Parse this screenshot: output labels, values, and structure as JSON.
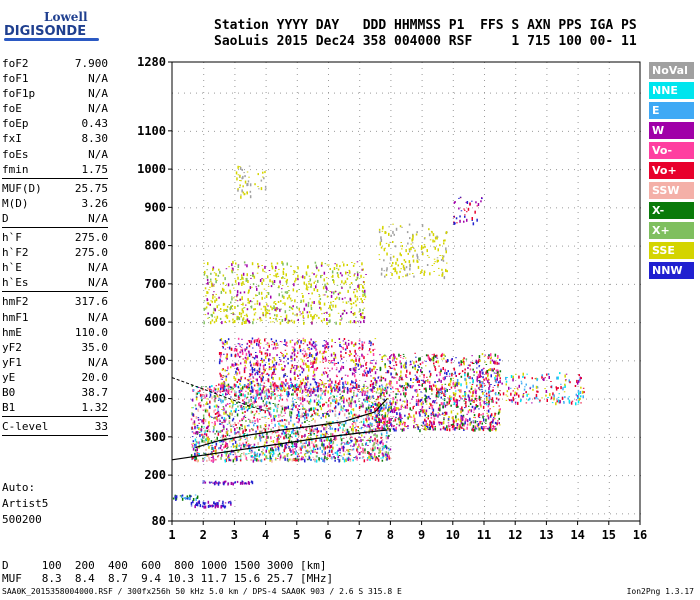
{
  "logo": {
    "line1": "Lowell",
    "line2": "DIGISONDE"
  },
  "header": {
    "row1": "Station YYYY DAY   DDD HHMMSS P1  FFS S AXN PPS IGA PS",
    "row2": "SaoLuis 2015 Dec24 358 004000 RSF     1 715 100 00- 11"
  },
  "params_group1": [
    {
      "k": "foF2",
      "v": "7.900"
    },
    {
      "k": "foF1",
      "v": "N/A"
    },
    {
      "k": "foF1p",
      "v": "N/A"
    },
    {
      "k": "foE",
      "v": "N/A"
    },
    {
      "k": "foEp",
      "v": "0.43"
    },
    {
      "k": "fxI",
      "v": "8.30"
    },
    {
      "k": "foEs",
      "v": "N/A"
    },
    {
      "k": "fmin",
      "v": "1.75"
    }
  ],
  "params_group2": [
    {
      "k": "MUF(D)",
      "v": "25.75"
    },
    {
      "k": "M(D)",
      "v": "3.26"
    },
    {
      "k": "D",
      "v": "N/A"
    }
  ],
  "params_group3": [
    {
      "k": "h`F",
      "v": "275.0"
    },
    {
      "k": "h`F2",
      "v": "275.0"
    },
    {
      "k": "h`E",
      "v": "N/A"
    },
    {
      "k": "h`Es",
      "v": "N/A"
    }
  ],
  "params_group4": [
    {
      "k": "hmF2",
      "v": "317.6"
    },
    {
      "k": "hmF1",
      "v": "N/A"
    },
    {
      "k": "hmE",
      "v": "110.0"
    },
    {
      "k": "yF2",
      "v": "35.0"
    },
    {
      "k": "yF1",
      "v": "N/A"
    },
    {
      "k": "yE",
      "v": "20.0"
    },
    {
      "k": "B0",
      "v": "38.7"
    },
    {
      "k": "B1",
      "v": "1.32"
    }
  ],
  "params_group5": [
    {
      "k": "C-level",
      "v": "33"
    }
  ],
  "auto": [
    "Auto:",
    "Artist5",
    "500200"
  ],
  "legend": [
    {
      "label": "NoVal",
      "color": "#a0a0a0"
    },
    {
      "label": "NNE",
      "color": "#00e5ee"
    },
    {
      "label": "E",
      "color": "#3fa9f5"
    },
    {
      "label": "W",
      "color": "#a000a8"
    },
    {
      "label": "Vo-",
      "color": "#ff3fa0"
    },
    {
      "label": "Vo+",
      "color": "#e8002c"
    },
    {
      "label": "SSW",
      "color": "#f4b0a8"
    },
    {
      "label": "X-",
      "color": "#0a7a0a"
    },
    {
      "label": "X+",
      "color": "#7fbf5f"
    },
    {
      "label": "SSE",
      "color": "#d4d400"
    },
    {
      "label": "NNW",
      "color": "#2020d0"
    }
  ],
  "bottom": {
    "row1": "D     100  200  400  600  800 1000 1500 3000 [km]",
    "row2": "MUF   8.3  8.4  8.7  9.4 10.3 11.7 15.6 25.7 [MHz]"
  },
  "footer": {
    "left": "SAA0K_2015358004000.RSF / 300fx256h 50 kHz 5.0 km / DPS-4 SAA0K 903 / 2.6 S 315.8 E",
    "right": "Ion2Png 1.3.17"
  },
  "chart_data": {
    "type": "scatter",
    "xlim": [
      1,
      16
    ],
    "ylim": [
      80,
      1280
    ],
    "x_ticks": [
      1,
      2,
      3,
      4,
      5,
      6,
      7,
      8,
      9,
      10,
      11,
      12,
      13,
      14,
      15,
      16
    ],
    "y_ticks": [
      80,
      200,
      300,
      400,
      500,
      600,
      700,
      800,
      900,
      1000,
      1100,
      1280
    ],
    "grid": true,
    "profile_curve": [
      {
        "x": 1.0,
        "y": 240
      },
      {
        "x": 2.0,
        "y": 252
      },
      {
        "x": 3.0,
        "y": 264
      },
      {
        "x": 4.0,
        "y": 276
      },
      {
        "x": 5.0,
        "y": 288
      },
      {
        "x": 6.0,
        "y": 300
      },
      {
        "x": 7.0,
        "y": 310
      },
      {
        "x": 7.9,
        "y": 318
      }
    ],
    "trace_curve": [
      {
        "x": 1.75,
        "y": 272
      },
      {
        "x": 2.5,
        "y": 290
      },
      {
        "x": 3.5,
        "y": 305
      },
      {
        "x": 4.5,
        "y": 318
      },
      {
        "x": 5.5,
        "y": 328
      },
      {
        "x": 6.5,
        "y": 340
      },
      {
        "x": 7.5,
        "y": 365
      },
      {
        "x": 7.9,
        "y": 400
      }
    ],
    "trace_curve_upper": [
      {
        "x": 1.0,
        "y": 455
      },
      {
        "x": 1.5,
        "y": 440
      },
      {
        "x": 2.0,
        "y": 425
      },
      {
        "x": 2.5,
        "y": 410
      },
      {
        "x": 3.0,
        "y": 395
      },
      {
        "x": 3.5,
        "y": 380
      },
      {
        "x": 4.0,
        "y": 368
      }
    ],
    "echo_clusters": [
      {
        "x0": 1.6,
        "x1": 8.0,
        "y0": 240,
        "y1": 440,
        "count": 2200,
        "colors": [
          "#e8002c",
          "#ff3fa0",
          "#a000a8",
          "#2020d0",
          "#d4d400",
          "#0a7a0a",
          "#7fbf5f",
          "#3fa9f5",
          "#00e5ee",
          "#f4b0a8"
        ]
      },
      {
        "x0": 2.5,
        "x1": 7.5,
        "y0": 420,
        "y1": 560,
        "count": 900,
        "colors": [
          "#a000a8",
          "#2020d0",
          "#e8002c",
          "#ff3fa0",
          "#d4d400"
        ]
      },
      {
        "x0": 7.5,
        "x1": 11.5,
        "y0": 320,
        "y1": 520,
        "count": 1100,
        "colors": [
          "#e8002c",
          "#ff3fa0",
          "#d4d400",
          "#a000a8",
          "#0a7a0a",
          "#2020d0"
        ]
      },
      {
        "x0": 2.0,
        "x1": 7.2,
        "y0": 600,
        "y1": 760,
        "count": 700,
        "colors": [
          "#d4d400",
          "#d4d400",
          "#d4d400",
          "#7fbf5f",
          "#a000a8"
        ]
      },
      {
        "x0": 7.6,
        "x1": 9.8,
        "y0": 720,
        "y1": 860,
        "count": 180,
        "colors": [
          "#d4d400",
          "#d4d400",
          "#a0a0a0"
        ]
      },
      {
        "x0": 3.0,
        "x1": 4.0,
        "y0": 930,
        "y1": 1010,
        "count": 50,
        "colors": [
          "#d4d400",
          "#a0a0a0"
        ]
      },
      {
        "x0": 9.5,
        "x1": 14.2,
        "y0": 390,
        "y1": 470,
        "count": 280,
        "colors": [
          "#d4d400",
          "#e8002c",
          "#3fa9f5",
          "#00e5ee",
          "#a000a8"
        ]
      },
      {
        "x0": 10.0,
        "x1": 11.0,
        "y0": 860,
        "y1": 930,
        "count": 40,
        "colors": [
          "#a000a8",
          "#e8002c",
          "#2020d0"
        ]
      },
      {
        "x0": 1.6,
        "x1": 3.0,
        "y0": 120,
        "y1": 135,
        "count": 60,
        "colors": [
          "#2020d0",
          "#a000a8"
        ]
      },
      {
        "x0": 1.0,
        "x1": 1.8,
        "y0": 140,
        "y1": 150,
        "count": 30,
        "colors": [
          "#3fa9f5",
          "#0a7a0a",
          "#2020d0"
        ]
      },
      {
        "x0": 1.8,
        "x1": 3.6,
        "y0": 180,
        "y1": 186,
        "count": 50,
        "colors": [
          "#2020d0",
          "#a000a8"
        ]
      }
    ]
  }
}
